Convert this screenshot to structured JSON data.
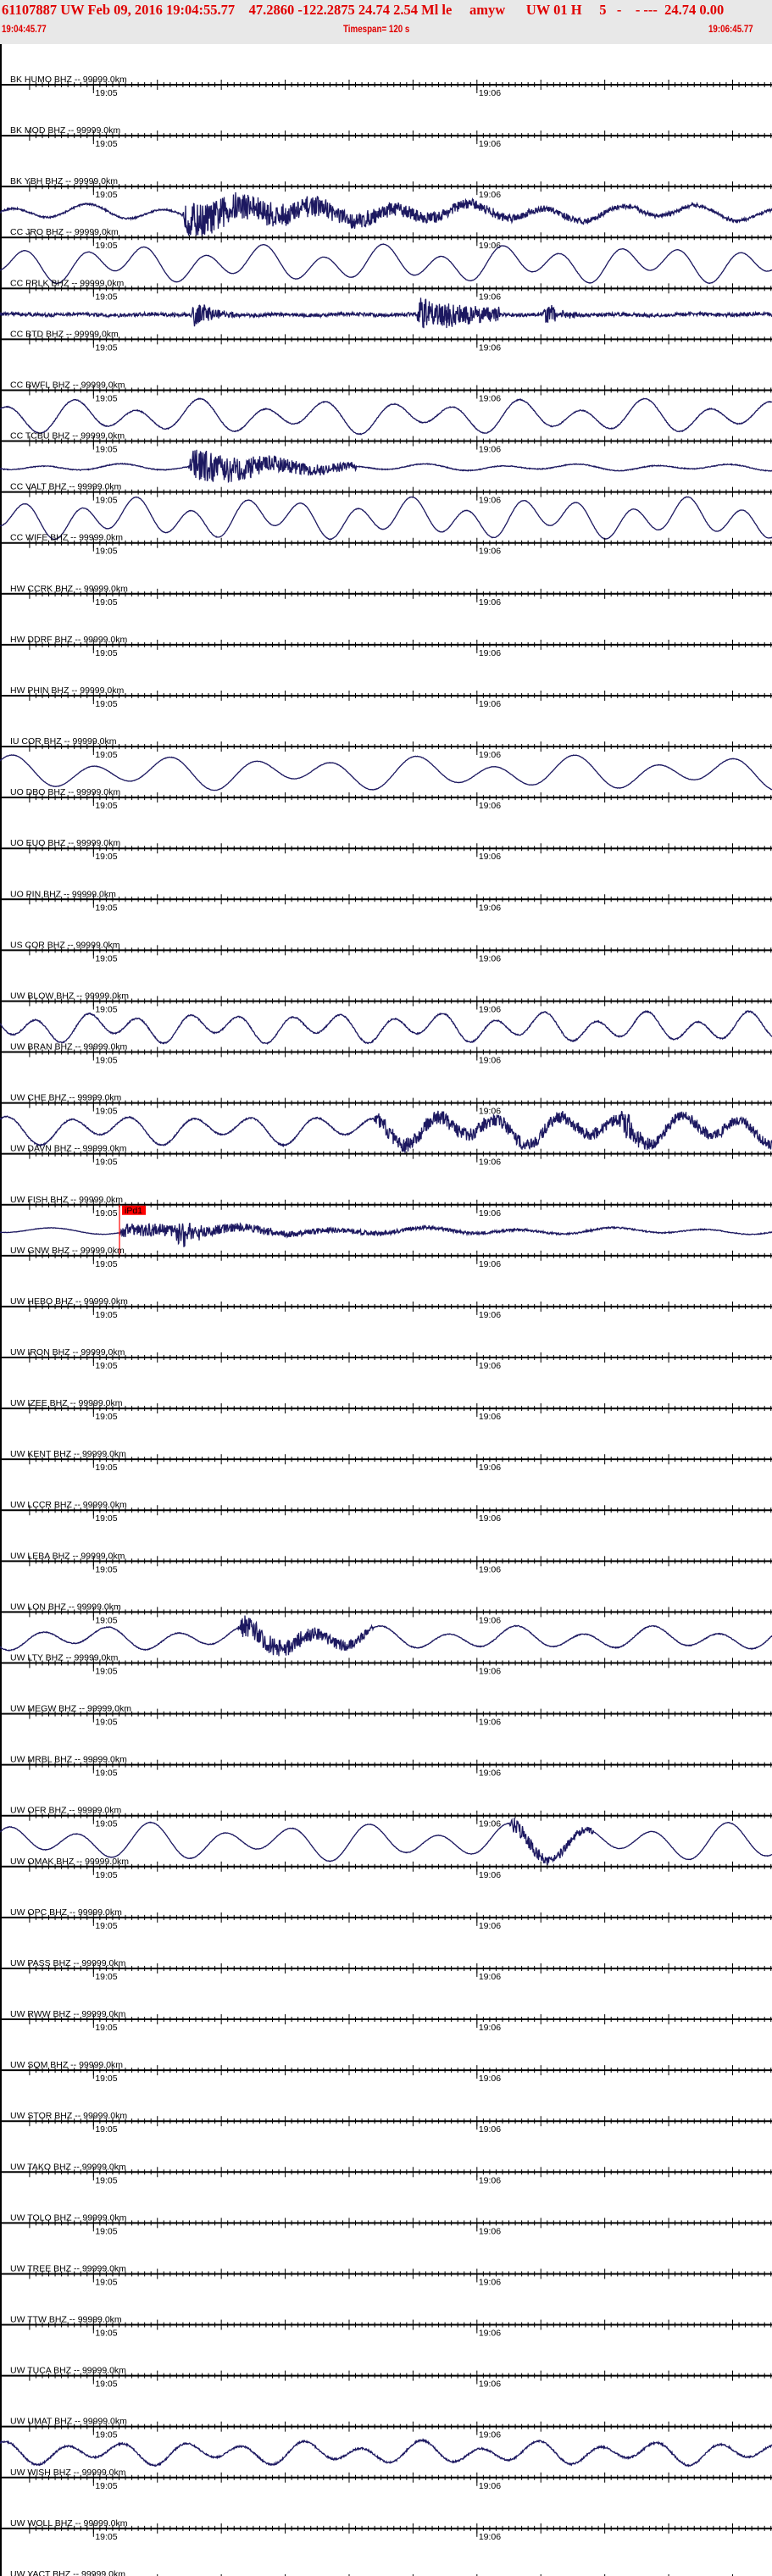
{
  "header": {
    "event_line": "61107887 UW Feb 09, 2016 19:04:55.77    47.2860 -122.2875 24.74 2.54 Ml le     amyw      UW 01 H     5   -    - ---  24.74 0.00",
    "start_time": "19:04:45.77",
    "timespan": "Timespan= 120 s",
    "end_time": "19:06:45.77"
  },
  "colors": {
    "header_text": "#e00000",
    "header_bg": "#e8e8e8",
    "trace": "#1c1860",
    "pick": "#ff0000",
    "axis": "#000000"
  },
  "chart_data": {
    "type": "line",
    "title": "",
    "x_range": [
      "19:04:45.77",
      "19:06:45.77"
    ],
    "x_span_s": 120,
    "tick_labels": [
      "19:05",
      "19:06"
    ],
    "minor_tick_interval_s": 1,
    "major_tick_interval_s": 10,
    "grid": false,
    "channels": [
      {
        "label": "BK HUMO BHZ -- 99999.0km",
        "has_data": false
      },
      {
        "label": "BK MOD BHZ -- 99999.0km",
        "has_data": false
      },
      {
        "label": "BK YBH BHZ -- 99999.0km",
        "has_data": true
      },
      {
        "label": "CC JRO BHZ -- 99999.0km",
        "has_data": true
      },
      {
        "label": "CC PRLK BHZ -- 99999.0km",
        "has_data": true
      },
      {
        "label": "CC BTD BHZ -- 99999.0km",
        "has_data": false
      },
      {
        "label": "CC BWFL BHZ -- 99999.0km",
        "has_data": true
      },
      {
        "label": "CC TCBU BHZ -- 99999.0km",
        "has_data": true
      },
      {
        "label": "CC VALT BHZ -- 99999.0km",
        "has_data": true
      },
      {
        "label": "CC WIFE BHZ -- 99999.0km",
        "has_data": false
      },
      {
        "label": "HW CCRK BHZ -- 99999.0km",
        "has_data": false
      },
      {
        "label": "HW DDRF BHZ -- 99999.0km",
        "has_data": false
      },
      {
        "label": "HW PHIN BHZ -- 99999.0km",
        "has_data": false
      },
      {
        "label": "IU COR BHZ -- 99999.0km",
        "has_data": true
      },
      {
        "label": "UO DBO BHZ -- 99999.0km",
        "has_data": false
      },
      {
        "label": "UO EUO BHZ -- 99999.0km",
        "has_data": false
      },
      {
        "label": "UO PIN BHZ -- 99999.0km",
        "has_data": false
      },
      {
        "label": "US COR BHZ -- 99999.0km",
        "has_data": false
      },
      {
        "label": "UW BLOW BHZ -- 99999.0km",
        "has_data": true
      },
      {
        "label": "UW BRAN BHZ -- 99999.0km",
        "has_data": false
      },
      {
        "label": "UW CHE BHZ -- 99999.0km",
        "has_data": true
      },
      {
        "label": "UW DAVN BHZ -- 99999.0km",
        "has_data": false
      },
      {
        "label": "UW FISH BHZ -- 99999.0km",
        "has_data": true,
        "pick": {
          "label": "iPd1",
          "time": "19:05:04"
        }
      },
      {
        "label": "UW GNW BHZ -- 99999.0km",
        "has_data": false
      },
      {
        "label": "UW HEBO BHZ -- 99999.0km",
        "has_data": false
      },
      {
        "label": "UW IRON BHZ -- 99999.0km",
        "has_data": false
      },
      {
        "label": "UW IZEE BHZ -- 99999.0km",
        "has_data": false
      },
      {
        "label": "UW KENT BHZ -- 99999.0km",
        "has_data": false
      },
      {
        "label": "UW LCCR BHZ -- 99999.0km",
        "has_data": false
      },
      {
        "label": "UW LEBA BHZ -- 99999.0km",
        "has_data": false
      },
      {
        "label": "UW LON BHZ -- 99999.0km",
        "has_data": true
      },
      {
        "label": "UW LTY BHZ -- 99999.0km",
        "has_data": false
      },
      {
        "label": "UW MEGW BHZ -- 99999.0km",
        "has_data": false
      },
      {
        "label": "UW MRBL BHZ -- 99999.0km",
        "has_data": false
      },
      {
        "label": "UW OFR BHZ -- 99999.0km",
        "has_data": true
      },
      {
        "label": "UW OMAK BHZ -- 99999.0km",
        "has_data": false
      },
      {
        "label": "UW OPC BHZ -- 99999.0km",
        "has_data": false
      },
      {
        "label": "UW PASS BHZ -- 99999.0km",
        "has_data": false
      },
      {
        "label": "UW RWW BHZ -- 99999.0km",
        "has_data": false
      },
      {
        "label": "UW SQM BHZ -- 99999.0km",
        "has_data": false
      },
      {
        "label": "UW STOR BHZ -- 99999.0km",
        "has_data": false
      },
      {
        "label": "UW TAKO BHZ -- 99999.0km",
        "has_data": false
      },
      {
        "label": "UW TOLO BHZ -- 99999.0km",
        "has_data": false
      },
      {
        "label": "UW TREE BHZ -- 99999.0km",
        "has_data": false
      },
      {
        "label": "UW TTW BHZ -- 99999.0km",
        "has_data": false
      },
      {
        "label": "UW TUCA BHZ -- 99999.0km",
        "has_data": false
      },
      {
        "label": "UW UMAT BHZ -- 99999.0km",
        "has_data": true
      },
      {
        "label": "UW WISH BHZ -- 99999.0km",
        "has_data": false
      },
      {
        "label": "UW WOLL BHZ -- 99999.0km",
        "has_data": false
      },
      {
        "label": "UW YACT BHZ -- 99999.0km",
        "has_data": false
      }
    ]
  }
}
